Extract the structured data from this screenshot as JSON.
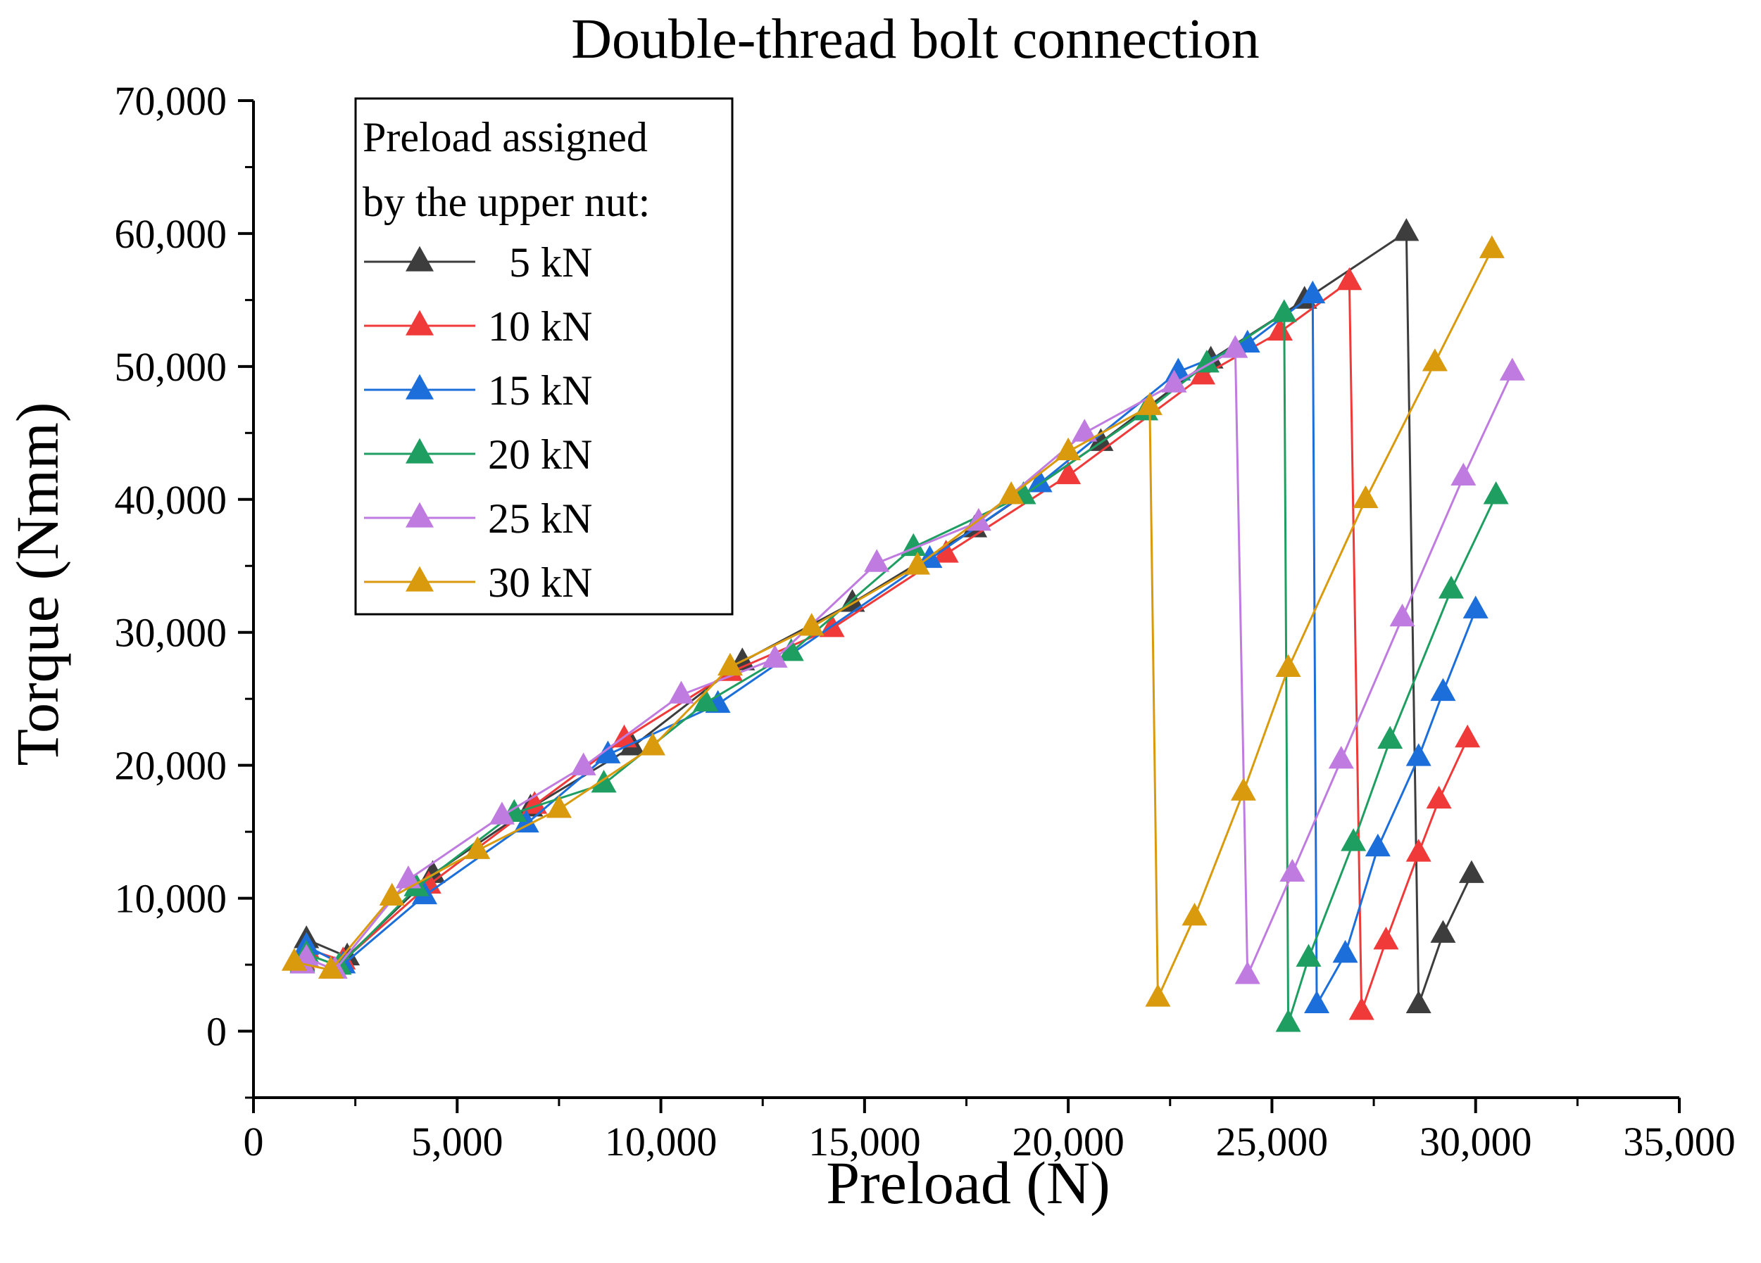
{
  "chart_data": {
    "type": "line",
    "title": "Double-thread bolt connection",
    "xlabel": "Preload (N)",
    "ylabel": "Torque (Nmm)",
    "xlim": [
      0,
      35000
    ],
    "ylim": [
      -5000,
      70000
    ],
    "x_ticks": [
      0,
      5000,
      10000,
      15000,
      20000,
      25000,
      30000,
      35000
    ],
    "x_tick_labels": [
      "0",
      "5,000",
      "10,000",
      "15,000",
      "20,000",
      "25,000",
      "30,000",
      "35,000"
    ],
    "y_ticks": [
      0,
      10000,
      20000,
      30000,
      40000,
      50000,
      60000,
      70000
    ],
    "y_tick_labels": [
      "0",
      "10,000",
      "20,000",
      "30,000",
      "40,000",
      "50,000",
      "60,000",
      "70,000"
    ],
    "legend_title": [
      "Preload assigned",
      "by the upper nut:"
    ],
    "legend_position": "top-left",
    "marker": "triangle-up",
    "series": [
      {
        "name": "5 kN",
        "label": "  5 kN",
        "color": "#3d3d3d",
        "points": [
          [
            1200,
            5200
          ],
          [
            1300,
            6900
          ],
          [
            2300,
            5600
          ],
          [
            4400,
            11800
          ],
          [
            6800,
            16800
          ],
          [
            9300,
            21400
          ],
          [
            12000,
            27800
          ],
          [
            14700,
            32200
          ],
          [
            17700,
            37800
          ],
          [
            20800,
            44300
          ],
          [
            23500,
            50500
          ],
          [
            25800,
            55000
          ],
          [
            28300,
            60100
          ],
          [
            28600,
            2000
          ],
          [
            29200,
            7300
          ],
          [
            29900,
            11800
          ]
        ]
      },
      {
        "name": "10 kN",
        "label": "10 kN",
        "color": "#f03a3a",
        "points": [
          [
            1200,
            5300
          ],
          [
            1300,
            6200
          ],
          [
            2200,
            5300
          ],
          [
            4300,
            11000
          ],
          [
            6900,
            17000
          ],
          [
            9100,
            22000
          ],
          [
            11700,
            27000
          ],
          [
            14200,
            30300
          ],
          [
            17000,
            35900
          ],
          [
            20000,
            41800
          ],
          [
            23300,
            49300
          ],
          [
            25200,
            52600
          ],
          [
            26900,
            56400
          ],
          [
            27200,
            1500
          ],
          [
            27800,
            6800
          ],
          [
            28600,
            13400
          ],
          [
            29100,
            17400
          ],
          [
            29800,
            22000
          ]
        ]
      },
      {
        "name": "15 kN",
        "label": "15 kN",
        "color": "#1c6fdb",
        "points": [
          [
            1200,
            5000
          ],
          [
            1300,
            6400
          ],
          [
            2200,
            5000
          ],
          [
            4200,
            10200
          ],
          [
            6700,
            15600
          ],
          [
            8700,
            20800
          ],
          [
            11400,
            24600
          ],
          [
            16600,
            35500
          ],
          [
            19300,
            41200
          ],
          [
            22700,
            49600
          ],
          [
            24400,
            51700
          ],
          [
            26000,
            55400
          ],
          [
            26100,
            2000
          ],
          [
            26800,
            5800
          ],
          [
            27600,
            13800
          ],
          [
            28600,
            20600
          ],
          [
            29200,
            25500
          ],
          [
            30000,
            31700
          ]
        ]
      },
      {
        "name": "20 kN",
        "label": "20 kN",
        "color": "#1f9e62",
        "points": [
          [
            1200,
            5100
          ],
          [
            1300,
            5800
          ],
          [
            2100,
            4900
          ],
          [
            4000,
            10800
          ],
          [
            6400,
            16400
          ],
          [
            8600,
            18600
          ],
          [
            11100,
            24700
          ],
          [
            13200,
            28500
          ],
          [
            16200,
            36400
          ],
          [
            18900,
            40300
          ],
          [
            21900,
            46600
          ],
          [
            23400,
            50200
          ],
          [
            25300,
            54000
          ],
          [
            25400,
            600
          ],
          [
            25900,
            5500
          ],
          [
            27000,
            14200
          ],
          [
            27900,
            21900
          ],
          [
            29400,
            33200
          ],
          [
            30500,
            40300
          ]
        ]
      },
      {
        "name": "25 kN",
        "label": "25 kN",
        "color": "#bf7be0",
        "points": [
          [
            1200,
            5000
          ],
          [
            1300,
            5500
          ],
          [
            2000,
            4600
          ],
          [
            3800,
            11400
          ],
          [
            6100,
            16200
          ],
          [
            8100,
            19900
          ],
          [
            10500,
            25300
          ],
          [
            12800,
            28000
          ],
          [
            15300,
            35200
          ],
          [
            17800,
            38300
          ],
          [
            20400,
            45000
          ],
          [
            22600,
            48700
          ],
          [
            24100,
            51300
          ],
          [
            24400,
            4200
          ],
          [
            25500,
            11900
          ],
          [
            26700,
            20400
          ],
          [
            28200,
            31100
          ],
          [
            29700,
            41700
          ],
          [
            30900,
            49600
          ]
        ]
      },
      {
        "name": "30 kN",
        "label": "30 kN",
        "color": "#d99a0e",
        "points": [
          [
            1000,
            5200
          ],
          [
            1900,
            4600
          ],
          [
            3400,
            10100
          ],
          [
            5500,
            13600
          ],
          [
            7500,
            16700
          ],
          [
            9800,
            21400
          ],
          [
            11700,
            27400
          ],
          [
            13700,
            30400
          ],
          [
            16300,
            35000
          ],
          [
            18600,
            40300
          ],
          [
            20000,
            43600
          ],
          [
            22000,
            47000
          ],
          [
            22200,
            2500
          ],
          [
            23100,
            8600
          ],
          [
            24300,
            18000
          ],
          [
            25400,
            27300
          ],
          [
            27300,
            40000
          ],
          [
            29000,
            50300
          ],
          [
            30400,
            58800
          ]
        ]
      }
    ]
  }
}
